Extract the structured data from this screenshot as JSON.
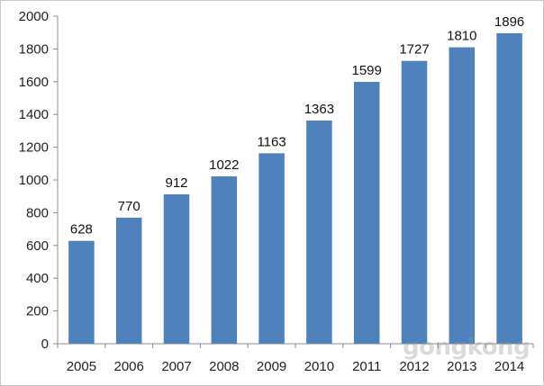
{
  "chart_data": {
    "type": "bar",
    "categories": [
      "2005",
      "2006",
      "2007",
      "2008",
      "2009",
      "2010",
      "2011",
      "2012",
      "2013",
      "2014"
    ],
    "values": [
      628,
      770,
      912,
      1022,
      1163,
      1363,
      1599,
      1727,
      1810,
      1896
    ],
    "data_labels": [
      "628",
      "770",
      "912",
      "1022",
      "1163",
      "1363",
      "1599",
      "1727",
      "1810",
      "1896"
    ],
    "title": "",
    "xlabel": "",
    "ylabel": "",
    "ylim": [
      0,
      2000
    ],
    "yticks": [
      0,
      200,
      400,
      600,
      800,
      1000,
      1200,
      1400,
      1600,
      1800,
      2000
    ],
    "grid": false,
    "legend": "none",
    "bar_color": "#4F81BD"
  },
  "watermark": "gongkong"
}
